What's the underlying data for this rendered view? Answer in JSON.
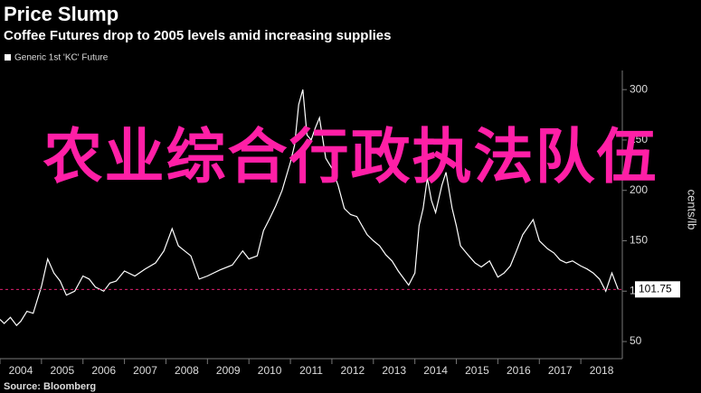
{
  "chart_data": {
    "type": "line",
    "title": "Price Slump",
    "subtitle": "Coffee Futures drop to 2005 levels amid increasing supplies",
    "y_label": "cents/lb",
    "source": "Source: Bloomberg",
    "overlay_text": "农业综合行政执法队伍",
    "x": [
      2004.0,
      2004.1,
      2004.25,
      2004.4,
      2004.5,
      2004.65,
      2004.8,
      2005.0,
      2005.15,
      2005.3,
      2005.45,
      2005.6,
      2005.8,
      2006.0,
      2006.15,
      2006.3,
      2006.5,
      2006.65,
      2006.8,
      2007.0,
      2007.25,
      2007.5,
      2007.75,
      2007.95,
      2008.15,
      2008.3,
      2008.45,
      2008.6,
      2008.8,
      2009.0,
      2009.3,
      2009.6,
      2009.85,
      2010.0,
      2010.2,
      2010.35,
      2010.5,
      2010.65,
      2010.8,
      2011.0,
      2011.1,
      2011.2,
      2011.3,
      2011.4,
      2011.5,
      2011.6,
      2011.7,
      2011.85,
      2012.0,
      2012.15,
      2012.3,
      2012.45,
      2012.6,
      2012.85,
      2013.0,
      2013.15,
      2013.3,
      2013.45,
      2013.6,
      2013.85,
      2014.0,
      2014.1,
      2014.2,
      2014.3,
      2014.4,
      2014.5,
      2014.65,
      2014.75,
      2014.9,
      2015.0,
      2015.1,
      2015.3,
      2015.45,
      2015.6,
      2015.8,
      2016.0,
      2016.15,
      2016.3,
      2016.45,
      2016.6,
      2016.75,
      2016.85,
      2017.0,
      2017.2,
      2017.35,
      2017.5,
      2017.65,
      2017.8,
      2018.0,
      2018.15,
      2018.3,
      2018.45,
      2018.6,
      2018.75,
      2018.9
    ],
    "series": [
      {
        "name": "Generic 1st 'KC' Future",
        "color": "#ffffff",
        "values": [
          72,
          68,
          74,
          66,
          70,
          80,
          78,
          105,
          132,
          118,
          110,
          96,
          100,
          115,
          112,
          104,
          100,
          108,
          110,
          120,
          115,
          122,
          128,
          140,
          162,
          145,
          140,
          135,
          112,
          115,
          121,
          126,
          140,
          132,
          135,
          160,
          172,
          185,
          200,
          228,
          245,
          285,
          300,
          255,
          250,
          262,
          272,
          232,
          222,
          205,
          182,
          176,
          174,
          156,
          150,
          145,
          136,
          130,
          120,
          106,
          118,
          165,
          182,
          212,
          190,
          178,
          205,
          218,
          182,
          165,
          145,
          135,
          128,
          124,
          130,
          114,
          118,
          125,
          140,
          156,
          165,
          171,
          150,
          142,
          138,
          131,
          128,
          130,
          125,
          122,
          118,
          112,
          100,
          118,
          101.75
        ]
      }
    ],
    "xlim": [
      2004,
      2019
    ],
    "xticks": [
      {
        "value": 2004,
        "label": "2004"
      },
      {
        "value": 2005,
        "label": "2005"
      },
      {
        "value": 2006,
        "label": "2006"
      },
      {
        "value": 2007,
        "label": "2007"
      },
      {
        "value": 2008,
        "label": "2008"
      },
      {
        "value": 2009,
        "label": "2009"
      },
      {
        "value": 2010,
        "label": "2010"
      },
      {
        "value": 2011,
        "label": "2011"
      },
      {
        "value": 2012,
        "label": "2012"
      },
      {
        "value": 2013,
        "label": "2013"
      },
      {
        "value": 2014,
        "label": "2014"
      },
      {
        "value": 2015,
        "label": "2015"
      },
      {
        "value": 2016,
        "label": "2016"
      },
      {
        "value": 2017,
        "label": "2017"
      },
      {
        "value": 2018,
        "label": "2018"
      }
    ],
    "ylim": [
      33,
      319
    ],
    "yticks": [
      50,
      100,
      150,
      200,
      250,
      300
    ],
    "grid": false
  }
}
